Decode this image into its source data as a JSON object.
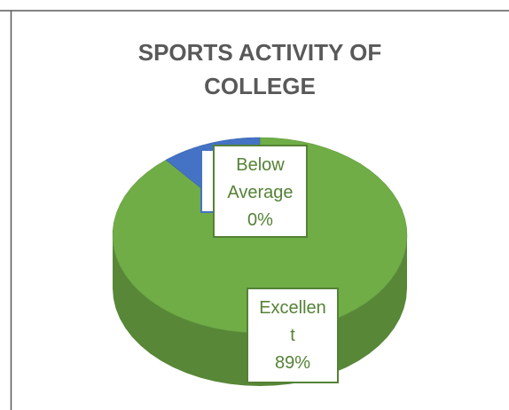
{
  "chart_data": {
    "type": "pie",
    "title": "SPORTS ACTIVITY OF COLLEGE",
    "categories": [
      "Excellent",
      "Below Average",
      null
    ],
    "values": [
      89,
      0,
      11
    ],
    "value_labels": [
      "89%",
      "0%",
      null
    ],
    "colors": [
      "#70ad47",
      "#ed7d31",
      "#4472c4"
    ]
  }
}
